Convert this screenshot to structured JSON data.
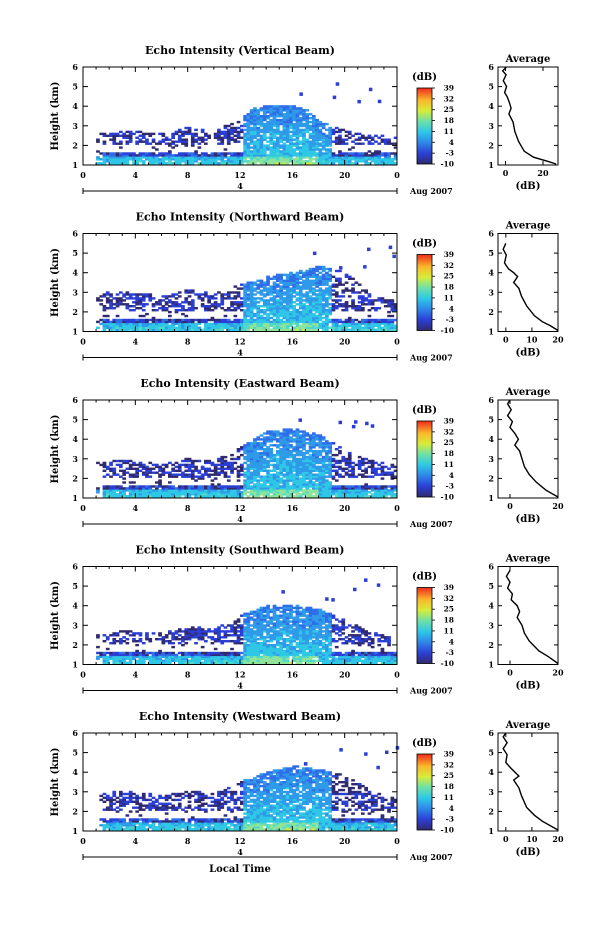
{
  "chart_data": [
    {
      "type": "heatmap",
      "title": "Echo Intensity (Vertical Beam)",
      "ylabel": "Height (km)",
      "xlim": [
        0,
        24
      ],
      "ylim": [
        1,
        6
      ],
      "xticks": [
        "0",
        "4",
        "8",
        "12",
        "16",
        "20",
        "0"
      ],
      "yticks": [
        "1",
        "2",
        "3",
        "4",
        "5",
        "6"
      ],
      "date_day": "4",
      "date_label": "Aug 2007",
      "colorbar": {
        "unit": "(dB)",
        "ticks": [
          "-10",
          "-3",
          "4",
          "11",
          "18",
          "25",
          "32",
          "39"
        ],
        "range": [
          -10,
          39
        ]
      },
      "average": {
        "title": "Average",
        "xlabel": "(dB)",
        "xticks": [
          "0",
          "20"
        ],
        "xlim": [
          -4,
          28
        ],
        "ylim": [
          1,
          6
        ],
        "profile": [
          [
            0.5,
            6.0
          ],
          [
            -1.5,
            5.8
          ],
          [
            0.3,
            5.6
          ],
          [
            -1.2,
            5.3
          ],
          [
            0.6,
            5.0
          ],
          [
            -0.5,
            4.7
          ],
          [
            0.8,
            4.5
          ],
          [
            2,
            4.2
          ],
          [
            3,
            3.9
          ],
          [
            1.8,
            3.6
          ],
          [
            4,
            3.2
          ],
          [
            5,
            2.7
          ],
          [
            7,
            2.2
          ],
          [
            10,
            1.7
          ],
          [
            15,
            1.4
          ],
          [
            22,
            1.2
          ],
          [
            27,
            1.05
          ]
        ]
      },
      "cloud_top_profile": [
        [
          1.5,
          2.6
        ],
        [
          3,
          2.7
        ],
        [
          6,
          2.6
        ],
        [
          8,
          2.9
        ],
        [
          10,
          2.7
        ],
        [
          12,
          3.4
        ],
        [
          13,
          3.9
        ],
        [
          14,
          4.0
        ],
        [
          16,
          4.0
        ],
        [
          17,
          3.8
        ],
        [
          18,
          3.2
        ],
        [
          20,
          2.7
        ],
        [
          22,
          2.5
        ],
        [
          24,
          2.4
        ]
      ]
    },
    {
      "type": "heatmap",
      "title": "Echo Intensity (Northward Beam)",
      "ylabel": "Height (km)",
      "xlim": [
        0,
        24
      ],
      "ylim": [
        1,
        6
      ],
      "xticks": [
        "0",
        "4",
        "8",
        "12",
        "16",
        "20",
        "0"
      ],
      "yticks": [
        "1",
        "2",
        "3",
        "4",
        "5",
        "6"
      ],
      "date_day": "4",
      "date_label": "Aug 2007",
      "colorbar": {
        "unit": "(dB)",
        "ticks": [
          "-10",
          "-3",
          "4",
          "11",
          "18",
          "25",
          "32",
          "39"
        ],
        "range": [
          -10,
          39
        ]
      },
      "average": {
        "title": "Average",
        "xlabel": "(dB)",
        "xticks": [
          "0",
          "10",
          "20"
        ],
        "xlim": [
          -3,
          20
        ],
        "ylim": [
          1,
          6
        ],
        "profile": [
          [
            0,
            5.5
          ],
          [
            -1,
            5.2
          ],
          [
            0.2,
            4.9
          ],
          [
            -0.5,
            4.5
          ],
          [
            1,
            4.2
          ],
          [
            3,
            4.0
          ],
          [
            4.5,
            3.8
          ],
          [
            3,
            3.5
          ],
          [
            5,
            3.2
          ],
          [
            6,
            2.8
          ],
          [
            8,
            2.3
          ],
          [
            11,
            1.8
          ],
          [
            14,
            1.5
          ],
          [
            17,
            1.3
          ],
          [
            20,
            1.05
          ]
        ]
      },
      "cloud_top_profile": [
        [
          1,
          3.1
        ],
        [
          3,
          3.0
        ],
        [
          6,
          2.8
        ],
        [
          8,
          3.1
        ],
        [
          10,
          2.9
        ],
        [
          12,
          3.4
        ],
        [
          14,
          3.8
        ],
        [
          16,
          4.0
        ],
        [
          18,
          4.3
        ],
        [
          20,
          4.0
        ],
        [
          22,
          2.8
        ],
        [
          24,
          2.5
        ]
      ]
    },
    {
      "type": "heatmap",
      "title": "Echo Intensity (Eastward Beam)",
      "ylabel": "Height (km)",
      "xlim": [
        0,
        24
      ],
      "ylim": [
        1,
        6
      ],
      "xticks": [
        "0",
        "4",
        "8",
        "12",
        "16",
        "20",
        "0"
      ],
      "yticks": [
        "1",
        "2",
        "3",
        "4",
        "5",
        "6"
      ],
      "date_day": "4",
      "date_label": "Aug 2007",
      "colorbar": {
        "unit": "(dB)",
        "ticks": [
          "-10",
          "-3",
          "4",
          "11",
          "18",
          "25",
          "32",
          "39"
        ],
        "range": [
          -10,
          39
        ]
      },
      "average": {
        "title": "Average",
        "xlabel": "(dB)",
        "xticks": [
          "0",
          "20"
        ],
        "xlim": [
          -5,
          20
        ],
        "ylim": [
          1,
          6
        ],
        "profile": [
          [
            0,
            6.0
          ],
          [
            -1,
            5.8
          ],
          [
            0.5,
            5.5
          ],
          [
            -1,
            5.2
          ],
          [
            1,
            4.9
          ],
          [
            0,
            4.6
          ],
          [
            2,
            4.3
          ],
          [
            3.5,
            4.0
          ],
          [
            2,
            3.7
          ],
          [
            4,
            3.4
          ],
          [
            5,
            3.0
          ],
          [
            6,
            2.6
          ],
          [
            8,
            2.2
          ],
          [
            11,
            1.8
          ],
          [
            15,
            1.4
          ],
          [
            20,
            1.05
          ]
        ]
      },
      "cloud_top_profile": [
        [
          1,
          2.8
        ],
        [
          3,
          2.9
        ],
        [
          6,
          2.7
        ],
        [
          8,
          3.0
        ],
        [
          10,
          2.9
        ],
        [
          12,
          3.6
        ],
        [
          14,
          4.4
        ],
        [
          16,
          4.5
        ],
        [
          18,
          4.2
        ],
        [
          20,
          3.4
        ],
        [
          22,
          2.9
        ],
        [
          24,
          2.6
        ]
      ]
    },
    {
      "type": "heatmap",
      "title": "Echo Intensity (Southward Beam)",
      "ylabel": "Height (km)",
      "xlim": [
        0,
        24
      ],
      "ylim": [
        1,
        6
      ],
      "xticks": [
        "0",
        "4",
        "8",
        "12",
        "16",
        "20",
        "0"
      ],
      "yticks": [
        "1",
        "2",
        "3",
        "4",
        "5",
        "6"
      ],
      "date_day": "4",
      "date_label": "Aug 2007",
      "colorbar": {
        "unit": "(dB)",
        "ticks": [
          "-10",
          "-3",
          "4",
          "11",
          "18",
          "25",
          "32",
          "39"
        ],
        "range": [
          -10,
          39
        ]
      },
      "average": {
        "title": "Average",
        "xlabel": "(dB)",
        "xticks": [
          "0",
          "20"
        ],
        "xlim": [
          -5,
          20
        ],
        "ylim": [
          1,
          6
        ],
        "profile": [
          [
            0,
            5.8
          ],
          [
            -1.5,
            5.5
          ],
          [
            0,
            5.2
          ],
          [
            -1,
            4.9
          ],
          [
            1,
            4.6
          ],
          [
            0.5,
            4.3
          ],
          [
            3,
            4.0
          ],
          [
            4,
            3.7
          ],
          [
            3,
            3.4
          ],
          [
            5,
            3.0
          ],
          [
            6,
            2.6
          ],
          [
            8,
            2.2
          ],
          [
            12,
            1.7
          ],
          [
            16,
            1.4
          ],
          [
            20,
            1.05
          ]
        ]
      },
      "cloud_top_profile": [
        [
          1,
          2.5
        ],
        [
          3,
          2.7
        ],
        [
          6,
          2.6
        ],
        [
          8,
          2.9
        ],
        [
          10,
          2.8
        ],
        [
          12,
          3.5
        ],
        [
          14,
          4.0
        ],
        [
          16,
          4.0
        ],
        [
          18,
          3.8
        ],
        [
          20,
          3.2
        ],
        [
          22,
          2.6
        ],
        [
          24,
          2.3
        ]
      ]
    },
    {
      "type": "heatmap",
      "title": "Echo Intensity (Westward Beam)",
      "ylabel": "Height (km)",
      "xlabel": "Local Time",
      "xlim": [
        0,
        24
      ],
      "ylim": [
        1,
        6
      ],
      "xticks": [
        "0",
        "4",
        "8",
        "12",
        "16",
        "20",
        "0"
      ],
      "yticks": [
        "1",
        "2",
        "3",
        "4",
        "5",
        "6"
      ],
      "date_day": "4",
      "date_label": "Aug 2007",
      "colorbar": {
        "unit": "(dB)",
        "ticks": [
          "-10",
          "-3",
          "4",
          "11",
          "18",
          "25",
          "32",
          "39"
        ],
        "range": [
          -10,
          39
        ]
      },
      "average": {
        "title": "Average",
        "xlabel": "(dB)",
        "xticks": [
          "0",
          "10",
          "20"
        ],
        "xlim": [
          -3,
          20
        ],
        "ylim": [
          1,
          6
        ],
        "profile": [
          [
            0,
            6.0
          ],
          [
            -1,
            5.8
          ],
          [
            0.5,
            5.5
          ],
          [
            -1,
            5.2
          ],
          [
            0.5,
            4.9
          ],
          [
            0,
            4.5
          ],
          [
            2,
            4.2
          ],
          [
            5,
            3.8
          ],
          [
            3,
            3.6
          ],
          [
            5,
            3.2
          ],
          [
            6,
            2.8
          ],
          [
            8,
            2.2
          ],
          [
            11,
            1.8
          ],
          [
            14,
            1.5
          ],
          [
            18,
            1.2
          ],
          [
            20,
            1.05
          ]
        ]
      },
      "cloud_top_profile": [
        [
          1,
          2.9
        ],
        [
          3,
          3.0
        ],
        [
          6,
          2.8
        ],
        [
          8,
          3.0
        ],
        [
          10,
          2.9
        ],
        [
          12,
          3.5
        ],
        [
          14,
          4.0
        ],
        [
          16,
          4.3
        ],
        [
          18,
          4.1
        ],
        [
          20,
          3.8
        ],
        [
          22,
          3.0
        ],
        [
          24,
          2.7
        ]
      ]
    }
  ]
}
